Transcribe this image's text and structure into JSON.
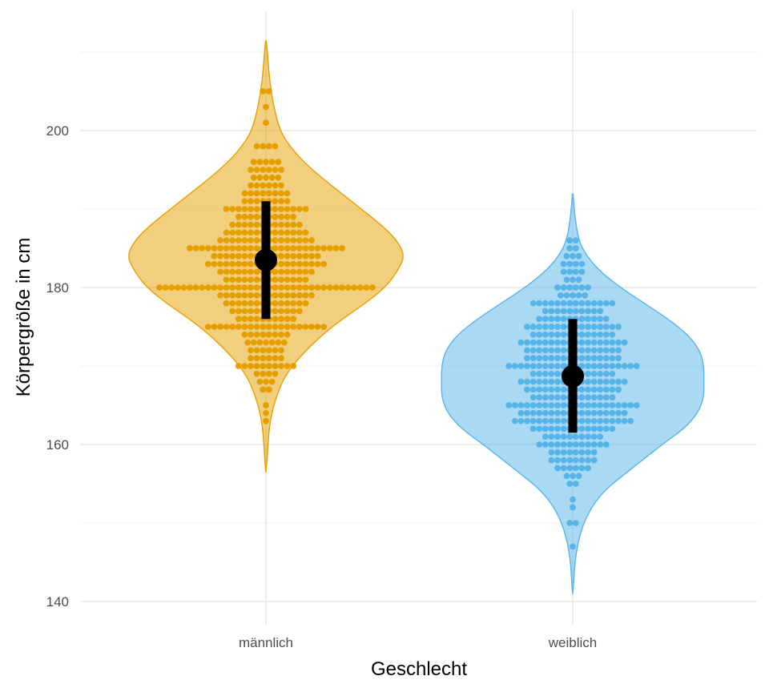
{
  "chart_data": {
    "type": "violin",
    "xlabel": "Geschlecht",
    "ylabel": "Körpergröße in cm",
    "categories": [
      "männlich",
      "weiblich"
    ],
    "ylim": [
      137,
      214
    ],
    "y_ticks": [
      140,
      160,
      180,
      200
    ],
    "grid": true,
    "legend": "none",
    "groups": [
      {
        "name": "männlich",
        "color": "#E69F00",
        "range": [
          156.5,
          211.5
        ],
        "mean": 183.5,
        "sd_lower": 176,
        "sd_upper": 191,
        "density": [
          [
            156.5,
            0.002
          ],
          [
            160,
            0.01
          ],
          [
            163,
            0.02
          ],
          [
            166,
            0.05
          ],
          [
            169,
            0.1
          ],
          [
            172,
            0.2
          ],
          [
            175,
            0.33
          ],
          [
            178,
            0.5
          ],
          [
            180,
            0.6
          ],
          [
            182,
            0.66
          ],
          [
            184,
            0.7
          ],
          [
            186,
            0.66
          ],
          [
            188,
            0.58
          ],
          [
            190,
            0.48
          ],
          [
            192,
            0.38
          ],
          [
            194,
            0.28
          ],
          [
            196,
            0.19
          ],
          [
            198,
            0.12
          ],
          [
            200,
            0.07
          ],
          [
            203,
            0.04
          ],
          [
            206,
            0.02
          ],
          [
            209,
            0.01
          ],
          [
            211.5,
            0.002
          ]
        ],
        "dot_rows": [
          [
            205,
            2
          ],
          [
            203,
            1
          ],
          [
            201,
            1
          ],
          [
            198,
            4
          ],
          [
            196,
            5
          ],
          [
            195,
            6
          ],
          [
            194,
            5
          ],
          [
            193,
            6
          ],
          [
            192,
            8
          ],
          [
            191,
            8
          ],
          [
            190,
            14
          ],
          [
            189,
            10
          ],
          [
            188,
            12
          ],
          [
            187,
            14
          ],
          [
            186,
            16
          ],
          [
            185,
            26
          ],
          [
            184,
            18
          ],
          [
            183,
            20
          ],
          [
            182,
            16
          ],
          [
            181,
            14
          ],
          [
            180,
            36
          ],
          [
            179,
            16
          ],
          [
            178,
            14
          ],
          [
            177,
            12
          ],
          [
            176,
            10
          ],
          [
            175,
            20
          ],
          [
            174,
            8
          ],
          [
            173,
            7
          ],
          [
            172,
            6
          ],
          [
            171,
            6
          ],
          [
            170,
            10
          ],
          [
            169,
            4
          ],
          [
            168,
            3
          ],
          [
            167,
            2
          ],
          [
            165,
            1
          ],
          [
            164,
            1
          ],
          [
            163,
            1
          ]
        ]
      },
      {
        "name": "weiblich",
        "color": "#56B4E9",
        "range": [
          141,
          192
        ],
        "mean": 168.7,
        "sd_lower": 161.5,
        "sd_upper": 176,
        "density": [
          [
            141,
            0.002
          ],
          [
            145,
            0.01
          ],
          [
            148,
            0.03
          ],
          [
            151,
            0.07
          ],
          [
            154,
            0.15
          ],
          [
            157,
            0.3
          ],
          [
            160,
            0.45
          ],
          [
            162,
            0.56
          ],
          [
            164,
            0.63
          ],
          [
            166,
            0.66
          ],
          [
            168,
            0.66
          ],
          [
            170,
            0.66
          ],
          [
            172,
            0.64
          ],
          [
            174,
            0.58
          ],
          [
            176,
            0.48
          ],
          [
            178,
            0.36
          ],
          [
            180,
            0.24
          ],
          [
            182,
            0.14
          ],
          [
            184,
            0.07
          ],
          [
            186,
            0.03
          ],
          [
            189,
            0.01
          ],
          [
            192,
            0.002
          ]
        ],
        "dot_rows": [
          [
            186,
            2
          ],
          [
            185,
            2
          ],
          [
            184,
            3
          ],
          [
            183,
            4
          ],
          [
            182,
            4
          ],
          [
            181,
            3
          ],
          [
            180,
            6
          ],
          [
            179,
            5
          ],
          [
            178,
            14
          ],
          [
            177,
            10
          ],
          [
            176,
            12
          ],
          [
            175,
            16
          ],
          [
            174,
            14
          ],
          [
            173,
            18
          ],
          [
            172,
            16
          ],
          [
            171,
            16
          ],
          [
            170,
            22
          ],
          [
            169,
            14
          ],
          [
            168,
            18
          ],
          [
            167,
            16
          ],
          [
            166,
            14
          ],
          [
            165,
            22
          ],
          [
            164,
            18
          ],
          [
            163,
            20
          ],
          [
            162,
            14
          ],
          [
            161,
            10
          ],
          [
            160,
            12
          ],
          [
            159,
            8
          ],
          [
            158,
            8
          ],
          [
            157,
            6
          ],
          [
            156,
            3
          ],
          [
            155,
            2
          ],
          [
            153,
            1
          ],
          [
            152,
            1
          ],
          [
            150,
            2
          ],
          [
            147,
            1
          ]
        ]
      }
    ]
  }
}
